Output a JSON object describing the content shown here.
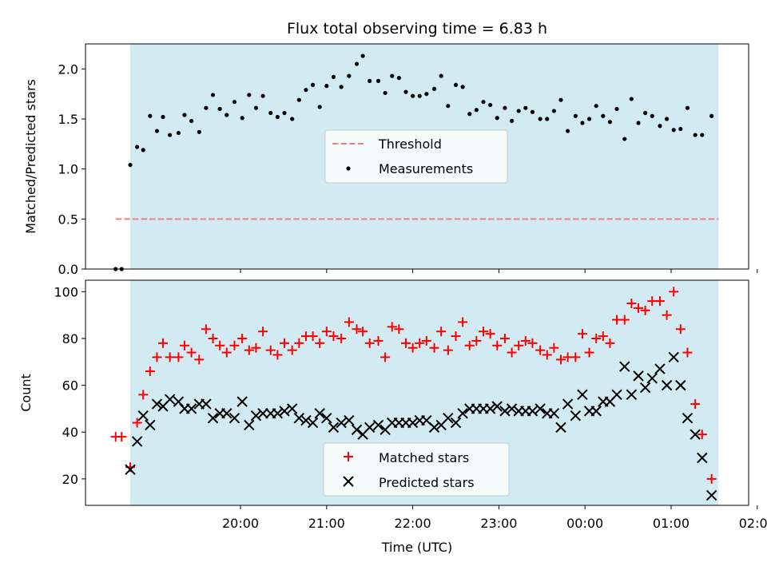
{
  "title": "Flux total observing time = 6.83 h",
  "colors": {
    "shade": "#add8e6",
    "threshold": "#f08080",
    "measurements": "#000000",
    "matched": "#ff0000",
    "predicted": "#000000"
  },
  "chart_data": [
    {
      "type": "scatter",
      "xlabel": "",
      "ylabel": "Matched/Predicted stars",
      "ylim": [
        0,
        2.25
      ],
      "xlim": [
        -0.8,
        6.9
      ],
      "x_unit": "hours since 19:00 UTC",
      "yticks": [
        "0.0",
        "0.5",
        "1.0",
        "1.5",
        "2.0"
      ],
      "ytick_values": [
        0,
        0.5,
        1.0,
        1.5,
        2.0
      ],
      "shaded_interval": [
        -0.28,
        6.55
      ],
      "threshold": {
        "label": "Threshold",
        "y": 0.5,
        "x_range": [
          -0.45,
          6.55
        ]
      },
      "legend": [
        "Threshold",
        "Measurements"
      ],
      "legend_position": "center",
      "series": [
        {
          "name": "Measurements",
          "marker": "dot",
          "points": [
            [
              -0.45,
              0.0
            ],
            [
              -0.38,
              0.0
            ],
            [
              -0.28,
              1.04
            ],
            [
              -0.2,
              1.22
            ],
            [
              -0.13,
              1.19
            ],
            [
              -0.05,
              1.53
            ],
            [
              0.03,
              1.38
            ],
            [
              0.1,
              1.52
            ],
            [
              0.18,
              1.34
            ],
            [
              0.28,
              1.36
            ],
            [
              0.35,
              1.54
            ],
            [
              0.43,
              1.48
            ],
            [
              0.52,
              1.37
            ],
            [
              0.6,
              1.61
            ],
            [
              0.68,
              1.74
            ],
            [
              0.76,
              1.6
            ],
            [
              0.84,
              1.54
            ],
            [
              0.93,
              1.67
            ],
            [
              1.02,
              1.51
            ],
            [
              1.1,
              1.74
            ],
            [
              1.18,
              1.61
            ],
            [
              1.26,
              1.73
            ],
            [
              1.35,
              1.56
            ],
            [
              1.43,
              1.52
            ],
            [
              1.51,
              1.56
            ],
            [
              1.6,
              1.5
            ],
            [
              1.68,
              1.69
            ],
            [
              1.76,
              1.79
            ],
            [
              1.84,
              1.84
            ],
            [
              1.92,
              1.62
            ],
            [
              2.0,
              1.83
            ],
            [
              2.08,
              1.92
            ],
            [
              2.17,
              1.82
            ],
            [
              2.26,
              1.93
            ],
            [
              2.35,
              2.05
            ],
            [
              2.42,
              2.13
            ],
            [
              2.5,
              1.88
            ],
            [
              2.6,
              1.88
            ],
            [
              2.68,
              1.76
            ],
            [
              2.76,
              1.93
            ],
            [
              2.84,
              1.91
            ],
            [
              2.92,
              1.77
            ],
            [
              3.0,
              1.73
            ],
            [
              3.08,
              1.73
            ],
            [
              3.16,
              1.75
            ],
            [
              3.25,
              1.8
            ],
            [
              3.33,
              1.93
            ],
            [
              3.41,
              1.63
            ],
            [
              3.5,
              1.84
            ],
            [
              3.58,
              1.82
            ],
            [
              3.66,
              1.55
            ],
            [
              3.74,
              1.59
            ],
            [
              3.82,
              1.67
            ],
            [
              3.9,
              1.64
            ],
            [
              3.98,
              1.51
            ],
            [
              4.07,
              1.61
            ],
            [
              4.15,
              1.48
            ],
            [
              4.23,
              1.58
            ],
            [
              4.31,
              1.61
            ],
            [
              4.39,
              1.57
            ],
            [
              4.48,
              1.5
            ],
            [
              4.56,
              1.5
            ],
            [
              4.64,
              1.58
            ],
            [
              4.72,
              1.69
            ],
            [
              4.8,
              1.38
            ],
            [
              4.89,
              1.53
            ],
            [
              4.97,
              1.46
            ],
            [
              5.05,
              1.5
            ],
            [
              5.13,
              1.63
            ],
            [
              5.21,
              1.53
            ],
            [
              5.29,
              1.47
            ],
            [
              5.37,
              1.6
            ],
            [
              5.46,
              1.3
            ],
            [
              5.54,
              1.7
            ],
            [
              5.62,
              1.46
            ],
            [
              5.7,
              1.56
            ],
            [
              5.78,
              1.53
            ],
            [
              5.87,
              1.43
            ],
            [
              5.95,
              1.5
            ],
            [
              6.03,
              1.39
            ],
            [
              6.11,
              1.4
            ],
            [
              6.19,
              1.61
            ],
            [
              6.28,
              1.34
            ],
            [
              6.36,
              1.34
            ],
            [
              6.47,
              1.53
            ]
          ]
        }
      ]
    },
    {
      "type": "scatter",
      "xlabel": "Time (UTC)",
      "ylabel": "Count",
      "ylim": [
        8.7,
        104.9
      ],
      "xlim": [
        -0.8,
        6.9
      ],
      "x_unit": "hours since 19:00 UTC",
      "yticks": [
        "20",
        "40",
        "60",
        "80",
        "100"
      ],
      "ytick_values": [
        20,
        40,
        60,
        80,
        100
      ],
      "xticks": [
        "20:00",
        "21:00",
        "22:00",
        "23:00",
        "00:00",
        "01:00",
        "02:00"
      ],
      "xtick_values": [
        1,
        2,
        3,
        4,
        5,
        6,
        7
      ],
      "shaded_interval": [
        -0.28,
        6.55
      ],
      "legend": [
        "Matched stars",
        "Predicted stars"
      ],
      "legend_position": "lower center",
      "series": [
        {
          "name": "Matched stars",
          "marker": "plus",
          "points": [
            [
              -0.45,
              38
            ],
            [
              -0.38,
              38
            ],
            [
              -0.28,
              25
            ],
            [
              -0.2,
              44
            ],
            [
              -0.13,
              56
            ],
            [
              -0.05,
              66
            ],
            [
              0.03,
              72
            ],
            [
              0.1,
              78
            ],
            [
              0.18,
              72
            ],
            [
              0.28,
              72
            ],
            [
              0.35,
              77
            ],
            [
              0.43,
              74
            ],
            [
              0.52,
              71
            ],
            [
              0.6,
              84
            ],
            [
              0.68,
              80
            ],
            [
              0.76,
              77
            ],
            [
              0.84,
              74
            ],
            [
              0.93,
              77
            ],
            [
              1.02,
              80
            ],
            [
              1.1,
              75
            ],
            [
              1.18,
              76
            ],
            [
              1.26,
              83
            ],
            [
              1.35,
              75
            ],
            [
              1.43,
              73
            ],
            [
              1.51,
              78
            ],
            [
              1.6,
              75
            ],
            [
              1.68,
              78
            ],
            [
              1.76,
              81
            ],
            [
              1.84,
              81
            ],
            [
              1.92,
              78
            ],
            [
              2.0,
              83
            ],
            [
              2.08,
              81
            ],
            [
              2.17,
              80
            ],
            [
              2.26,
              87
            ],
            [
              2.35,
              84
            ],
            [
              2.42,
              83
            ],
            [
              2.5,
              78
            ],
            [
              2.6,
              79
            ],
            [
              2.68,
              72
            ],
            [
              2.76,
              85
            ],
            [
              2.84,
              84
            ],
            [
              2.92,
              78
            ],
            [
              3.0,
              76
            ],
            [
              3.08,
              78
            ],
            [
              3.16,
              79
            ],
            [
              3.25,
              76
            ],
            [
              3.33,
              83
            ],
            [
              3.41,
              75
            ],
            [
              3.5,
              81
            ],
            [
              3.58,
              87
            ],
            [
              3.66,
              77
            ],
            [
              3.74,
              79
            ],
            [
              3.82,
              83
            ],
            [
              3.9,
              82
            ],
            [
              3.98,
              77
            ],
            [
              4.07,
              80
            ],
            [
              4.15,
              74
            ],
            [
              4.23,
              77
            ],
            [
              4.31,
              79
            ],
            [
              4.39,
              78
            ],
            [
              4.48,
              75
            ],
            [
              4.56,
              73
            ],
            [
              4.64,
              76
            ],
            [
              4.72,
              71
            ],
            [
              4.8,
              72
            ],
            [
              4.89,
              72
            ],
            [
              4.97,
              82
            ],
            [
              5.05,
              74
            ],
            [
              5.13,
              80
            ],
            [
              5.21,
              81
            ],
            [
              5.29,
              78
            ],
            [
              5.37,
              88
            ],
            [
              5.46,
              88
            ],
            [
              5.54,
              95
            ],
            [
              5.62,
              93
            ],
            [
              5.7,
              92
            ],
            [
              5.78,
              96
            ],
            [
              5.87,
              96
            ],
            [
              5.95,
              90
            ],
            [
              6.03,
              100
            ],
            [
              6.11,
              84
            ],
            [
              6.19,
              74
            ],
            [
              6.28,
              52
            ],
            [
              6.36,
              39
            ],
            [
              6.47,
              20
            ]
          ]
        },
        {
          "name": "Predicted stars",
          "marker": "x",
          "points": [
            [
              -0.28,
              24
            ],
            [
              -0.2,
              36
            ],
            [
              -0.13,
              47
            ],
            [
              -0.05,
              43
            ],
            [
              0.03,
              52
            ],
            [
              0.1,
              51
            ],
            [
              0.18,
              54
            ],
            [
              0.28,
              53
            ],
            [
              0.35,
              50
            ],
            [
              0.43,
              50
            ],
            [
              0.52,
              52
            ],
            [
              0.6,
              52
            ],
            [
              0.68,
              46
            ],
            [
              0.76,
              48
            ],
            [
              0.84,
              48
            ],
            [
              0.93,
              46
            ],
            [
              1.02,
              53
            ],
            [
              1.1,
              43
            ],
            [
              1.18,
              47
            ],
            [
              1.26,
              48
            ],
            [
              1.35,
              48
            ],
            [
              1.43,
              48
            ],
            [
              1.51,
              49
            ],
            [
              1.6,
              50
            ],
            [
              1.68,
              46
            ],
            [
              1.76,
              45
            ],
            [
              1.84,
              44
            ],
            [
              1.92,
              48
            ],
            [
              2.0,
              46
            ],
            [
              2.08,
              42
            ],
            [
              2.17,
              44
            ],
            [
              2.26,
              45
            ],
            [
              2.35,
              41
            ],
            [
              2.42,
              39
            ],
            [
              2.5,
              42
            ],
            [
              2.6,
              43
            ],
            [
              2.68,
              41
            ],
            [
              2.76,
              44
            ],
            [
              2.84,
              44
            ],
            [
              2.92,
              44
            ],
            [
              3.0,
              44
            ],
            [
              3.08,
              45
            ],
            [
              3.16,
              45
            ],
            [
              3.25,
              42
            ],
            [
              3.33,
              43
            ],
            [
              3.41,
              46
            ],
            [
              3.5,
              44
            ],
            [
              3.58,
              48
            ],
            [
              3.66,
              50
            ],
            [
              3.74,
              50
            ],
            [
              3.82,
              50
            ],
            [
              3.9,
              50
            ],
            [
              3.98,
              51
            ],
            [
              4.07,
              49
            ],
            [
              4.15,
              50
            ],
            [
              4.23,
              49
            ],
            [
              4.31,
              49
            ],
            [
              4.39,
              49
            ],
            [
              4.48,
              50
            ],
            [
              4.56,
              48
            ],
            [
              4.64,
              48
            ],
            [
              4.72,
              42
            ],
            [
              4.8,
              52
            ],
            [
              4.89,
              47
            ],
            [
              4.97,
              56
            ],
            [
              5.05,
              49
            ],
            [
              5.13,
              49
            ],
            [
              5.21,
              53
            ],
            [
              5.29,
              53
            ],
            [
              5.37,
              56
            ],
            [
              5.46,
              68
            ],
            [
              5.54,
              56
            ],
            [
              5.62,
              64
            ],
            [
              5.7,
              59
            ],
            [
              5.78,
              63
            ],
            [
              5.87,
              67
            ],
            [
              5.95,
              60
            ],
            [
              6.03,
              72
            ],
            [
              6.11,
              60
            ],
            [
              6.19,
              46
            ],
            [
              6.28,
              39
            ],
            [
              6.36,
              29
            ],
            [
              6.47,
              13
            ]
          ]
        }
      ]
    }
  ]
}
